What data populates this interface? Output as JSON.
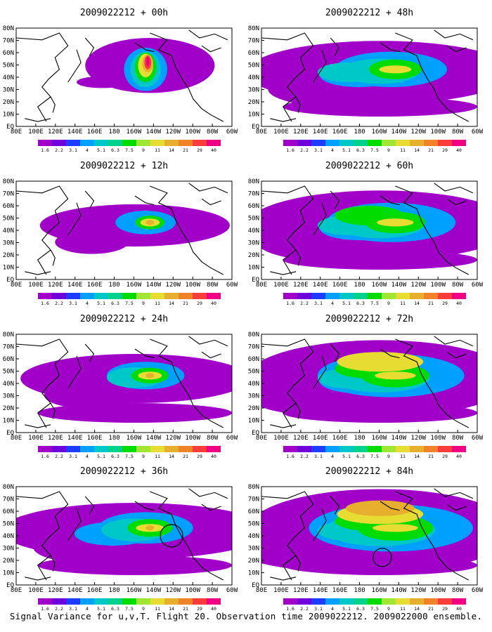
{
  "footer": "Signal Variance for u,v,T. Flight 20. Observation time 2009022212. 2009022000 ensemble.",
  "lat_labels": [
    "80N",
    "70N",
    "60N",
    "50N",
    "40N",
    "30N",
    "20N",
    "10N",
    "EQ"
  ],
  "lon_labels": [
    "80E",
    "100E",
    "120E",
    "140E",
    "160E",
    "180",
    "160W",
    "140W",
    "120W",
    "100W",
    "80W",
    "60W"
  ],
  "colorbar": {
    "levels": [
      "1.6",
      "2.2",
      "3.1",
      "4",
      "5.1",
      "6.3",
      "7.5",
      "9",
      "11",
      "14",
      "21",
      "29",
      "40"
    ],
    "colors": [
      "#a000c8",
      "#6e00dc",
      "#1e3cff",
      "#00a0ff",
      "#00c8c8",
      "#00d28c",
      "#00dc00",
      "#a0e632",
      "#e6dc32",
      "#e6af2d",
      "#f08228",
      "#fa3c3c",
      "#f00082"
    ]
  },
  "map_colors": {
    "white": "#ffffff",
    "purple": "#a000c8",
    "blue": "#00a0ff",
    "teal": "#00c8c8",
    "green": "#00dc00",
    "yellow": "#e6dc32",
    "orange": "#e6af2d",
    "red": "#fa3c3c",
    "magenta": "#f00082",
    "coast": "#000000"
  },
  "panels": [
    {
      "title": "2009022212 + 00h",
      "lead": "00h",
      "intensity": 0
    },
    {
      "title": "2009022212 + 48h",
      "lead": "48h",
      "intensity": 4
    },
    {
      "title": "2009022212 + 12h",
      "lead": "12h",
      "intensity": 1
    },
    {
      "title": "2009022212 + 60h",
      "lead": "60h",
      "intensity": 5
    },
    {
      "title": "2009022212 + 24h",
      "lead": "24h",
      "intensity": 2
    },
    {
      "title": "2009022212 + 72h",
      "lead": "72h",
      "intensity": 6
    },
    {
      "title": "2009022212 + 36h",
      "lead": "36h",
      "intensity": 3
    },
    {
      "title": "2009022212 + 84h",
      "lead": "84h",
      "intensity": 7
    }
  ]
}
